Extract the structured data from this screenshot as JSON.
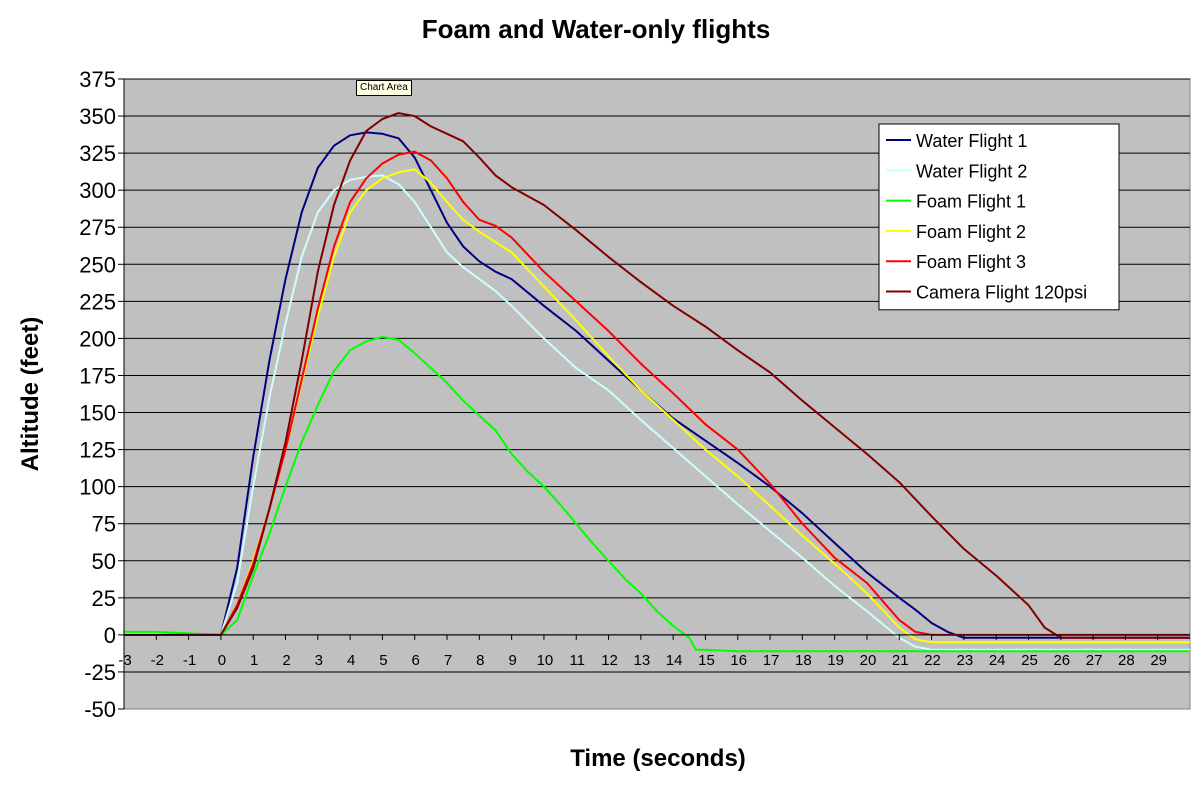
{
  "chart_data": {
    "type": "line",
    "title": "Foam and Water-only flights",
    "xlabel": "Time (seconds)",
    "ylabel": "Altitude (feet)",
    "xlim": [
      -3,
      30
    ],
    "ylim": [
      -50,
      375
    ],
    "xticks": [
      -3,
      -2,
      -1,
      0,
      1,
      2,
      3,
      4,
      5,
      6,
      7,
      8,
      9,
      10,
      11,
      12,
      13,
      14,
      15,
      16,
      17,
      18,
      19,
      20,
      21,
      22,
      23,
      24,
      25,
      26,
      27,
      28,
      29
    ],
    "yticks": [
      -50,
      -25,
      0,
      25,
      50,
      75,
      100,
      125,
      150,
      175,
      200,
      225,
      250,
      275,
      300,
      325,
      350,
      375
    ],
    "grid": "horizontal",
    "plot_background": "#c0c0c0",
    "legend_position": "top-right",
    "tooltip": "Chart Area",
    "series": [
      {
        "name": "Water Flight 1",
        "color": "#000080",
        "x": [
          -3,
          -2,
          -1,
          0,
          0.5,
          1,
          1.5,
          2,
          2.5,
          3,
          3.5,
          4,
          4.5,
          5,
          5.5,
          6,
          6.5,
          7,
          7.5,
          8,
          8.5,
          9,
          10,
          11,
          12,
          13,
          14,
          15,
          16,
          17,
          18,
          19,
          20,
          21,
          21.5,
          22,
          22.5,
          23,
          24,
          26,
          28,
          30
        ],
        "y": [
          0,
          0,
          0,
          0,
          45,
          120,
          185,
          240,
          285,
          315,
          330,
          337,
          339,
          338,
          335,
          322,
          300,
          278,
          262,
          252,
          245,
          240,
          222,
          205,
          185,
          165,
          146,
          131,
          116,
          100,
          82,
          62,
          42,
          25,
          17,
          8,
          2,
          -2,
          -2,
          -2,
          -2,
          -2
        ]
      },
      {
        "name": "Water Flight 2",
        "color": "#ccffff",
        "x": [
          -3,
          -2,
          -1,
          0,
          0.5,
          1,
          1.5,
          2,
          2.5,
          3,
          3.5,
          4,
          4.5,
          5,
          5.5,
          6,
          6.5,
          7,
          7.5,
          8,
          8.5,
          9,
          10,
          11,
          12,
          13,
          14,
          15,
          16,
          17,
          18,
          19,
          20,
          21,
          21.5,
          22,
          23,
          25,
          27,
          30
        ],
        "y": [
          1,
          1,
          0,
          0,
          35,
          100,
          160,
          210,
          255,
          285,
          300,
          307,
          309,
          310,
          304,
          292,
          275,
          258,
          248,
          240,
          232,
          222,
          200,
          180,
          165,
          145,
          126,
          107,
          88,
          70,
          52,
          33,
          16,
          -2,
          -8,
          -10,
          -10,
          -10,
          -10,
          -10
        ]
      },
      {
        "name": "Foam Flight 1",
        "color": "#00ff00",
        "x": [
          -3,
          -2,
          -1,
          0,
          0.5,
          1,
          1.5,
          2,
          2.5,
          3,
          3.5,
          4,
          4.5,
          5,
          5.5,
          6,
          6.5,
          7,
          7.5,
          8,
          8.5,
          9,
          9.5,
          10,
          10.5,
          11,
          11.5,
          12,
          12.5,
          13,
          13.5,
          14,
          14.5,
          14.7,
          15,
          16,
          18,
          20,
          22,
          24,
          26,
          28,
          30
        ],
        "y": [
          2,
          2,
          1,
          0,
          10,
          40,
          68,
          100,
          130,
          155,
          178,
          192,
          198,
          201,
          199,
          190,
          180,
          170,
          158,
          148,
          138,
          122,
          110,
          100,
          88,
          75,
          62,
          50,
          38,
          28,
          16,
          6,
          -2,
          -10,
          -10,
          -11,
          -11,
          -11,
          -11,
          -11,
          -11,
          -11,
          -11
        ]
      },
      {
        "name": "Foam Flight 2",
        "color": "#ffff00",
        "x": [
          -3,
          -2,
          -1,
          0,
          0.5,
          1,
          1.5,
          2,
          2.5,
          3,
          3.5,
          4,
          4.5,
          5,
          5.5,
          6,
          6.5,
          7,
          7.5,
          8,
          8.5,
          9,
          10,
          11,
          12,
          13,
          14,
          15,
          16,
          17,
          18,
          19,
          20,
          21,
          21.5,
          22,
          24,
          26,
          28,
          30
        ],
        "y": [
          0,
          0,
          0,
          0,
          20,
          50,
          85,
          125,
          170,
          215,
          255,
          285,
          300,
          308,
          312,
          314,
          305,
          292,
          280,
          272,
          265,
          258,
          235,
          212,
          188,
          165,
          145,
          125,
          107,
          87,
          67,
          48,
          28,
          5,
          -3,
          -5,
          -5,
          -5,
          -5,
          -5
        ]
      },
      {
        "name": "Foam Flight 3",
        "color": "#ff0000",
        "x": [
          -3,
          -2,
          -1,
          0,
          0.5,
          1,
          1.5,
          2,
          2.5,
          3,
          3.5,
          4,
          4.5,
          5,
          5.5,
          6,
          6.5,
          7,
          7.5,
          8,
          8.5,
          9,
          10,
          11,
          12,
          13,
          14,
          15,
          16,
          17,
          18,
          19,
          20,
          21,
          21.5,
          22,
          23,
          24,
          26,
          28,
          30
        ],
        "y": [
          0,
          0,
          0,
          0,
          20,
          48,
          85,
          125,
          172,
          220,
          262,
          292,
          308,
          318,
          324,
          326,
          320,
          308,
          292,
          280,
          276,
          268,
          245,
          225,
          205,
          183,
          163,
          142,
          125,
          102,
          75,
          52,
          35,
          10,
          2,
          0,
          0,
          0,
          0,
          0,
          0
        ]
      },
      {
        "name": "Camera Flight 120psi",
        "color": "#800000",
        "x": [
          -3,
          -2,
          -1,
          0,
          0.5,
          1,
          1.5,
          2,
          2.5,
          3,
          3.5,
          4,
          4.5,
          5,
          5.5,
          6,
          6.5,
          7,
          7.5,
          8,
          8.5,
          9,
          10,
          11,
          12,
          13,
          14,
          15,
          16,
          17,
          18,
          19,
          20,
          21,
          22,
          23,
          24,
          25,
          25.5,
          26,
          27,
          28,
          29,
          30
        ],
        "y": [
          0,
          0,
          0,
          0,
          18,
          45,
          85,
          130,
          185,
          245,
          290,
          320,
          340,
          348,
          352,
          350,
          343,
          338,
          333,
          322,
          310,
          302,
          290,
          273,
          255,
          238,
          222,
          208,
          192,
          177,
          158,
          140,
          122,
          103,
          80,
          58,
          40,
          20,
          5,
          -2,
          -2,
          -2,
          -2,
          -2
        ]
      }
    ]
  }
}
